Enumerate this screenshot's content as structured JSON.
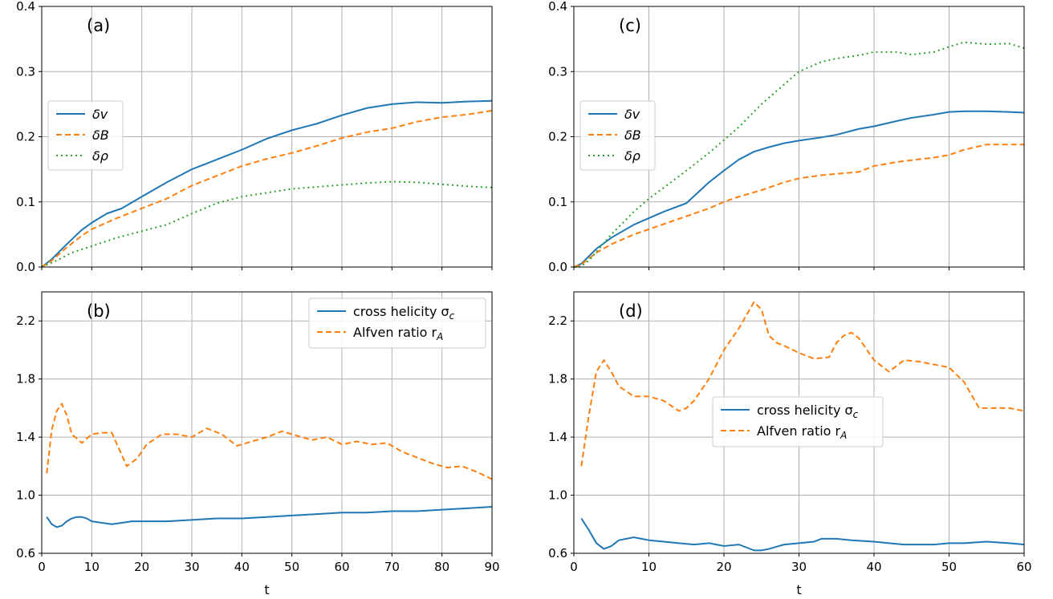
{
  "chart_data": [
    {
      "type": "line",
      "panel": "(a)",
      "xlim": [
        0,
        90
      ],
      "ylim": [
        0,
        0.4
      ],
      "xticks": [
        0,
        10,
        20,
        30,
        40,
        50,
        60,
        70,
        80,
        90
      ],
      "yticks": [
        0.0,
        0.1,
        0.2,
        0.3,
        0.4
      ],
      "ytick_labels": [
        "0.0",
        "0.1",
        "0.2",
        "0.3",
        "0.4"
      ],
      "grid": true,
      "legend": "center-left",
      "series": [
        {
          "name": "δv",
          "style": "solid",
          "color": "#1f77b4",
          "x": [
            0,
            2,
            5,
            8,
            10,
            13,
            16,
            20,
            25,
            30,
            35,
            40,
            45,
            50,
            55,
            60,
            65,
            70,
            75,
            80,
            85,
            90
          ],
          "y": [
            0,
            0.012,
            0.035,
            0.057,
            0.068,
            0.082,
            0.09,
            0.108,
            0.13,
            0.15,
            0.165,
            0.18,
            0.197,
            0.21,
            0.22,
            0.233,
            0.244,
            0.25,
            0.253,
            0.252,
            0.254,
            0.255
          ]
        },
        {
          "name": "δB",
          "style": "dashed",
          "color": "#ff7f0e",
          "x": [
            0,
            2,
            5,
            8,
            10,
            15,
            20,
            25,
            30,
            35,
            40,
            45,
            50,
            55,
            60,
            65,
            70,
            75,
            80,
            85,
            90
          ],
          "y": [
            0,
            0.01,
            0.03,
            0.048,
            0.058,
            0.075,
            0.09,
            0.105,
            0.125,
            0.14,
            0.155,
            0.166,
            0.175,
            0.186,
            0.198,
            0.207,
            0.213,
            0.223,
            0.23,
            0.234,
            0.24
          ]
        },
        {
          "name": "δρ",
          "style": "dotted",
          "color": "#2ca02c",
          "x": [
            0,
            3,
            6,
            10,
            15,
            20,
            25,
            30,
            35,
            40,
            45,
            50,
            55,
            60,
            65,
            70,
            75,
            80,
            85,
            90
          ],
          "y": [
            0,
            0.01,
            0.022,
            0.032,
            0.045,
            0.055,
            0.065,
            0.082,
            0.098,
            0.108,
            0.114,
            0.12,
            0.123,
            0.126,
            0.129,
            0.131,
            0.13,
            0.127,
            0.124,
            0.122
          ]
        }
      ]
    },
    {
      "type": "line",
      "panel": "(b)",
      "xlim": [
        0,
        90
      ],
      "ylim": [
        0.6,
        2.4
      ],
      "xticks": [
        0,
        10,
        20,
        30,
        40,
        50,
        60,
        70,
        80,
        90
      ],
      "yticks": [
        0.6,
        1.0,
        1.4,
        1.8,
        2.2
      ],
      "ytick_labels": [
        "0.6",
        "1.0",
        "1.4",
        "1.8",
        "2.2"
      ],
      "xlabel": "t",
      "grid": true,
      "legend": "upper-right",
      "series": [
        {
          "name": "cross helicity σc",
          "label_main": "cross helicity σ",
          "label_sub": "c",
          "style": "solid",
          "color": "#1f77b4",
          "x": [
            1,
            2,
            3,
            4,
            5,
            6,
            7,
            8,
            9,
            10,
            12,
            14,
            16,
            18,
            20,
            25,
            30,
            35,
            40,
            45,
            50,
            55,
            60,
            65,
            70,
            75,
            80,
            85,
            90
          ],
          "y": [
            0.85,
            0.8,
            0.78,
            0.79,
            0.82,
            0.84,
            0.85,
            0.85,
            0.84,
            0.82,
            0.81,
            0.8,
            0.81,
            0.82,
            0.82,
            0.82,
            0.83,
            0.84,
            0.84,
            0.85,
            0.86,
            0.87,
            0.88,
            0.88,
            0.89,
            0.89,
            0.9,
            0.91,
            0.92
          ]
        },
        {
          "name": "Alfven ratio rA",
          "label_main": "Alfven ratio r",
          "label_sub": "A",
          "style": "dashed",
          "color": "#ff7f0e",
          "x": [
            1,
            2,
            3,
            4,
            5,
            6,
            8,
            10,
            12,
            14,
            17,
            19,
            21,
            24,
            27,
            30,
            33,
            36,
            39,
            42,
            45,
            48,
            51,
            54,
            57,
            60,
            63,
            66,
            69,
            72,
            75,
            78,
            81,
            84,
            87,
            90
          ],
          "y": [
            1.15,
            1.45,
            1.58,
            1.63,
            1.55,
            1.42,
            1.36,
            1.42,
            1.43,
            1.43,
            1.2,
            1.25,
            1.35,
            1.42,
            1.42,
            1.4,
            1.46,
            1.42,
            1.34,
            1.37,
            1.4,
            1.44,
            1.41,
            1.38,
            1.4,
            1.35,
            1.37,
            1.35,
            1.36,
            1.3,
            1.26,
            1.22,
            1.19,
            1.2,
            1.16,
            1.11
          ]
        }
      ]
    },
    {
      "type": "line",
      "panel": "(c)",
      "xlim": [
        0,
        60
      ],
      "ylim": [
        0,
        0.4
      ],
      "xticks": [
        0,
        10,
        20,
        30,
        40,
        50,
        60
      ],
      "yticks": [
        0.0,
        0.1,
        0.2,
        0.3,
        0.4
      ],
      "ytick_labels": [
        "0.0",
        "0.1",
        "0.2",
        "0.3",
        "0.4"
      ],
      "grid": true,
      "legend": "center-left",
      "series": [
        {
          "name": "δv",
          "style": "solid",
          "color": "#1f77b4",
          "x": [
            0,
            1,
            3,
            5,
            8,
            10,
            12,
            15,
            18,
            20,
            22,
            24,
            26,
            28,
            30,
            33,
            35,
            38,
            40,
            43,
            45,
            48,
            50,
            52,
            55,
            58,
            60
          ],
          "y": [
            0,
            0.005,
            0.028,
            0.045,
            0.065,
            0.075,
            0.085,
            0.098,
            0.13,
            0.148,
            0.165,
            0.177,
            0.184,
            0.19,
            0.194,
            0.199,
            0.203,
            0.212,
            0.216,
            0.224,
            0.229,
            0.234,
            0.238,
            0.239,
            0.239,
            0.238,
            0.237
          ]
        },
        {
          "name": "δB",
          "style": "dashed",
          "color": "#ff7f0e",
          "x": [
            0,
            1,
            3,
            5,
            8,
            10,
            12,
            15,
            18,
            20,
            22,
            25,
            28,
            30,
            33,
            35,
            38,
            40,
            43,
            45,
            48,
            50,
            52,
            55,
            58,
            60
          ],
          "y": [
            0,
            0.004,
            0.022,
            0.035,
            0.05,
            0.058,
            0.066,
            0.078,
            0.09,
            0.1,
            0.108,
            0.118,
            0.13,
            0.136,
            0.141,
            0.143,
            0.146,
            0.155,
            0.161,
            0.164,
            0.168,
            0.172,
            0.18,
            0.188,
            0.188,
            0.188
          ]
        },
        {
          "name": "δρ",
          "style": "dotted",
          "color": "#2ca02c",
          "x": [
            0,
            1,
            2,
            5,
            8,
            10,
            12,
            15,
            18,
            20,
            22,
            25,
            28,
            30,
            33,
            35,
            38,
            40,
            43,
            45,
            48,
            50,
            52,
            55,
            58,
            60
          ],
          "y": [
            0,
            0.001,
            0.01,
            0.05,
            0.085,
            0.105,
            0.122,
            0.148,
            0.175,
            0.195,
            0.215,
            0.25,
            0.28,
            0.3,
            0.315,
            0.32,
            0.325,
            0.33,
            0.33,
            0.326,
            0.33,
            0.338,
            0.345,
            0.342,
            0.343,
            0.336
          ]
        }
      ]
    },
    {
      "type": "line",
      "panel": "(d)",
      "xlim": [
        0,
        60
      ],
      "ylim": [
        0.6,
        2.4
      ],
      "xticks": [
        0,
        10,
        20,
        30,
        40,
        50,
        60
      ],
      "yticks": [
        0.6,
        1.0,
        1.4,
        1.8,
        2.2
      ],
      "ytick_labels": [
        "0.6",
        "1.0",
        "1.4",
        "1.8",
        "2.2"
      ],
      "xlabel": "t",
      "grid": true,
      "legend": "center",
      "series": [
        {
          "name": "cross helicity σc",
          "label_main": "cross helicity σ",
          "label_sub": "c",
          "style": "solid",
          "color": "#1f77b4",
          "x": [
            1,
            2,
            3,
            4,
            5,
            6,
            7,
            8,
            9,
            10,
            12,
            14,
            16,
            18,
            20,
            22,
            24,
            25,
            26,
            28,
            30,
            32,
            33,
            35,
            37,
            40,
            42,
            44,
            46,
            48,
            50,
            52,
            55,
            58,
            60
          ],
          "y": [
            0.84,
            0.76,
            0.67,
            0.63,
            0.65,
            0.69,
            0.7,
            0.71,
            0.7,
            0.69,
            0.68,
            0.67,
            0.66,
            0.67,
            0.65,
            0.66,
            0.62,
            0.62,
            0.63,
            0.66,
            0.67,
            0.68,
            0.7,
            0.7,
            0.69,
            0.68,
            0.67,
            0.66,
            0.66,
            0.66,
            0.67,
            0.67,
            0.68,
            0.67,
            0.66
          ]
        },
        {
          "name": "Alfven ratio rA",
          "label_main": "Alfven ratio r",
          "label_sub": "A",
          "style": "dashed",
          "color": "#ff7f0e",
          "x": [
            1,
            2,
            3,
            4,
            5,
            6,
            8,
            10,
            12,
            14,
            15,
            16,
            18,
            20,
            22,
            24,
            25,
            26,
            27,
            28,
            30,
            32,
            34,
            35,
            36,
            37,
            38,
            40,
            42,
            44,
            46,
            48,
            50,
            52,
            54,
            56,
            58,
            60
          ],
          "y": [
            1.2,
            1.55,
            1.85,
            1.93,
            1.85,
            1.75,
            1.68,
            1.68,
            1.65,
            1.58,
            1.6,
            1.65,
            1.8,
            2.0,
            2.15,
            2.33,
            2.28,
            2.1,
            2.05,
            2.03,
            1.98,
            1.94,
            1.95,
            2.05,
            2.1,
            2.12,
            2.08,
            1.93,
            1.85,
            1.93,
            1.92,
            1.9,
            1.88,
            1.78,
            1.6,
            1.6,
            1.6,
            1.58
          ]
        }
      ]
    }
  ]
}
